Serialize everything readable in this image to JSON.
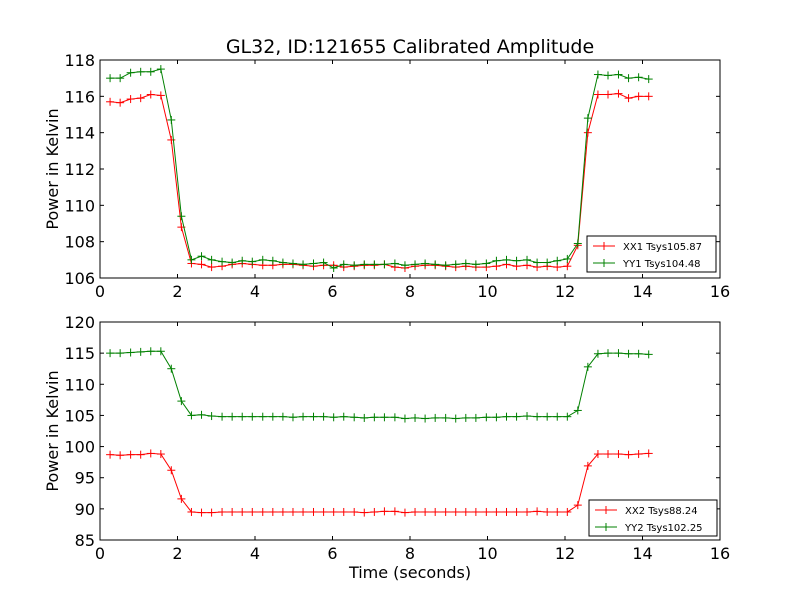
{
  "title": "GL32, ID:121655 Calibrated Amplitude",
  "colors": {
    "red": "#ff0000",
    "green": "#008000"
  },
  "chart_data": [
    {
      "type": "line",
      "title": "GL32, ID:121655 Calibrated Amplitude",
      "xlabel": "",
      "ylabel": "Power in Kelvin",
      "xlim": [
        0,
        16
      ],
      "ylim": [
        106,
        118
      ],
      "xticks": [
        "0",
        "2",
        "4",
        "6",
        "8",
        "10",
        "12",
        "14",
        "16"
      ],
      "yticks": [
        "106",
        "108",
        "110",
        "112",
        "114",
        "116",
        "118"
      ],
      "legend_position": "lower-right",
      "x": [
        0.26,
        0.52,
        0.79,
        1.05,
        1.31,
        1.57,
        1.84,
        2.1,
        2.36,
        2.62,
        2.88,
        3.15,
        3.41,
        3.67,
        3.93,
        4.2,
        4.46,
        4.72,
        4.98,
        5.24,
        5.51,
        5.77,
        6.03,
        6.29,
        6.56,
        6.82,
        7.08,
        7.34,
        7.61,
        7.87,
        8.13,
        8.39,
        8.65,
        8.92,
        9.18,
        9.44,
        9.7,
        9.97,
        10.23,
        10.49,
        10.75,
        11.02,
        11.28,
        11.54,
        11.8,
        12.06,
        12.33,
        12.59,
        12.85,
        13.11,
        13.38,
        13.64,
        13.9,
        14.16
      ],
      "series": [
        {
          "name": "XX1 Tsys105.87",
          "color": "red",
          "values": [
            115.7,
            115.65,
            115.85,
            115.9,
            116.1,
            116.05,
            113.6,
            108.8,
            106.8,
            106.75,
            106.6,
            106.65,
            106.75,
            106.8,
            106.75,
            106.7,
            106.7,
            106.75,
            106.75,
            106.7,
            106.65,
            106.7,
            106.7,
            106.6,
            106.65,
            106.7,
            106.7,
            106.75,
            106.6,
            106.55,
            106.65,
            106.7,
            106.7,
            106.65,
            106.6,
            106.65,
            106.6,
            106.6,
            106.65,
            106.75,
            106.65,
            106.7,
            106.6,
            106.65,
            106.6,
            106.65,
            107.8,
            114.0,
            116.1,
            116.1,
            116.15,
            115.9,
            116.0,
            116.0
          ]
        },
        {
          "name": "YY1 Tsys104.48",
          "color": "green",
          "values": [
            117.0,
            117.0,
            117.3,
            117.35,
            117.35,
            117.5,
            114.7,
            109.4,
            107.0,
            107.2,
            107.0,
            106.9,
            106.85,
            106.95,
            106.9,
            107.0,
            106.95,
            106.85,
            106.8,
            106.75,
            106.8,
            106.85,
            106.55,
            106.75,
            106.7,
            106.75,
            106.75,
            106.75,
            106.8,
            106.7,
            106.75,
            106.8,
            106.75,
            106.7,
            106.75,
            106.8,
            106.75,
            106.8,
            106.95,
            107.0,
            106.95,
            107.0,
            106.85,
            106.85,
            106.95,
            107.05,
            107.9,
            114.8,
            117.2,
            117.15,
            117.2,
            117.0,
            117.05,
            116.95
          ]
        }
      ]
    },
    {
      "type": "line",
      "title": "",
      "xlabel": "Time (seconds)",
      "ylabel": "Power in Kelvin",
      "xlim": [
        0,
        16
      ],
      "ylim": [
        85,
        120
      ],
      "xticks": [
        "0",
        "2",
        "4",
        "6",
        "8",
        "10",
        "12",
        "14",
        "16"
      ],
      "yticks": [
        "85",
        "90",
        "95",
        "100",
        "105",
        "110",
        "115",
        "120"
      ],
      "legend_position": "lower-right",
      "x": [
        0.26,
        0.52,
        0.79,
        1.05,
        1.31,
        1.57,
        1.84,
        2.1,
        2.36,
        2.62,
        2.88,
        3.15,
        3.41,
        3.67,
        3.93,
        4.2,
        4.46,
        4.72,
        4.98,
        5.24,
        5.51,
        5.77,
        6.03,
        6.29,
        6.56,
        6.82,
        7.08,
        7.34,
        7.61,
        7.87,
        8.13,
        8.39,
        8.65,
        8.92,
        9.18,
        9.44,
        9.7,
        9.97,
        10.23,
        10.49,
        10.75,
        11.02,
        11.28,
        11.54,
        11.8,
        12.06,
        12.33,
        12.59,
        12.85,
        13.11,
        13.38,
        13.64,
        13.9,
        14.16
      ],
      "series": [
        {
          "name": "XX2 Tsys88.24",
          "color": "red",
          "values": [
            98.7,
            98.6,
            98.7,
            98.7,
            98.9,
            98.8,
            96.2,
            91.6,
            89.5,
            89.4,
            89.4,
            89.5,
            89.5,
            89.5,
            89.5,
            89.5,
            89.5,
            89.5,
            89.5,
            89.5,
            89.5,
            89.5,
            89.5,
            89.5,
            89.5,
            89.4,
            89.5,
            89.6,
            89.6,
            89.4,
            89.5,
            89.5,
            89.5,
            89.5,
            89.5,
            89.5,
            89.5,
            89.5,
            89.5,
            89.5,
            89.5,
            89.5,
            89.6,
            89.5,
            89.5,
            89.5,
            90.6,
            96.9,
            98.8,
            98.8,
            98.8,
            98.7,
            98.8,
            98.9
          ]
        },
        {
          "name": "YY2 Tsys102.25",
          "color": "green",
          "values": [
            115.0,
            115.0,
            115.1,
            115.2,
            115.3,
            115.3,
            112.5,
            107.3,
            105.0,
            105.1,
            104.9,
            104.8,
            104.8,
            104.8,
            104.8,
            104.8,
            104.8,
            104.8,
            104.7,
            104.8,
            104.8,
            104.8,
            104.7,
            104.8,
            104.7,
            104.6,
            104.7,
            104.7,
            104.7,
            104.5,
            104.6,
            104.5,
            104.6,
            104.6,
            104.5,
            104.6,
            104.6,
            104.7,
            104.7,
            104.8,
            104.8,
            104.9,
            104.8,
            104.8,
            104.8,
            104.8,
            105.8,
            112.8,
            114.9,
            115.0,
            115.0,
            114.9,
            114.9,
            114.8
          ]
        }
      ]
    }
  ]
}
